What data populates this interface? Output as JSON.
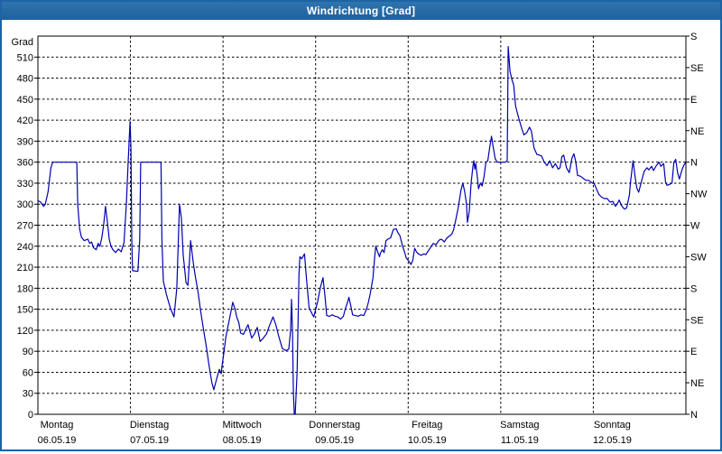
{
  "window": {
    "title": "Windrichtung [Grad]"
  },
  "chart_data": {
    "type": "line",
    "title": "Windrichtung [Grad]",
    "line_color": "#0000b0",
    "grid": "dashed",
    "ylim": [
      0,
      540
    ],
    "x_range_days": 7,
    "y_axis_left": {
      "title": "Grad",
      "tick_step": 30,
      "ticks": [
        0,
        30,
        60,
        90,
        120,
        150,
        180,
        210,
        240,
        270,
        300,
        330,
        360,
        390,
        420,
        450,
        480,
        510
      ]
    },
    "y_axis_right": {
      "tick_step": 45,
      "ticks": [
        {
          "value": 540,
          "label": "S"
        },
        {
          "value": 495,
          "label": "SE"
        },
        {
          "value": 450,
          "label": "E"
        },
        {
          "value": 405,
          "label": "NE"
        },
        {
          "value": 360,
          "label": "N"
        },
        {
          "value": 315,
          "label": "NW"
        },
        {
          "value": 270,
          "label": "W"
        },
        {
          "value": 225,
          "label": "SW"
        },
        {
          "value": 180,
          "label": "S"
        },
        {
          "value": 135,
          "label": "SE"
        },
        {
          "value": 90,
          "label": "E"
        },
        {
          "value": 45,
          "label": "NE"
        },
        {
          "value": 0,
          "label": "N"
        }
      ]
    },
    "x_axis": {
      "days": [
        {
          "name": "Montag",
          "date": "06.05.19"
        },
        {
          "name": "Dienstag",
          "date": "07.05.19"
        },
        {
          "name": "Mittwoch",
          "date": "08.05.19"
        },
        {
          "name": "Donnerstag",
          "date": "09.05.19"
        },
        {
          "name": "Freitag",
          "date": "10.05.19"
        },
        {
          "name": "Samstag",
          "date": "11.05.19"
        },
        {
          "name": "Sonntag",
          "date": "12.05.19"
        }
      ]
    },
    "series": [
      {
        "name": "Windrichtung",
        "points": [
          [
            0.0,
            305
          ],
          [
            0.03,
            303
          ],
          [
            0.06,
            297
          ],
          [
            0.08,
            300
          ],
          [
            0.11,
            318
          ],
          [
            0.14,
            352
          ],
          [
            0.16,
            360
          ],
          [
            0.42,
            360
          ],
          [
            0.43,
            300
          ],
          [
            0.45,
            265
          ],
          [
            0.47,
            253
          ],
          [
            0.5,
            248
          ],
          [
            0.54,
            250
          ],
          [
            0.56,
            244
          ],
          [
            0.58,
            246
          ],
          [
            0.6,
            238
          ],
          [
            0.63,
            235
          ],
          [
            0.65,
            244
          ],
          [
            0.67,
            240
          ],
          [
            0.69,
            252
          ],
          [
            0.71,
            270
          ],
          [
            0.73,
            297
          ],
          [
            0.75,
            276
          ],
          [
            0.77,
            250
          ],
          [
            0.79,
            240
          ],
          [
            0.81,
            235
          ],
          [
            0.84,
            231
          ],
          [
            0.87,
            236
          ],
          [
            0.9,
            232
          ],
          [
            0.93,
            245
          ],
          [
            0.955,
            300
          ],
          [
            0.975,
            360
          ],
          [
            0.995,
            418
          ],
          [
            1.005,
            380
          ],
          [
            1.014,
            250
          ],
          [
            1.023,
            205
          ],
          [
            1.08,
            204
          ],
          [
            1.1,
            250
          ],
          [
            1.11,
            360
          ],
          [
            1.33,
            360
          ],
          [
            1.34,
            250
          ],
          [
            1.355,
            190
          ],
          [
            1.39,
            170
          ],
          [
            1.43,
            152
          ],
          [
            1.47,
            139
          ],
          [
            1.5,
            180
          ],
          [
            1.52,
            260
          ],
          [
            1.53,
            300
          ],
          [
            1.55,
            280
          ],
          [
            1.57,
            227
          ],
          [
            1.58,
            214
          ],
          [
            1.6,
            188
          ],
          [
            1.62,
            184
          ],
          [
            1.64,
            225
          ],
          [
            1.65,
            248
          ],
          [
            1.68,
            215
          ],
          [
            1.7,
            197
          ],
          [
            1.73,
            175
          ],
          [
            1.755,
            150
          ],
          [
            1.79,
            120
          ],
          [
            1.82,
            96
          ],
          [
            1.85,
            68
          ],
          [
            1.88,
            45
          ],
          [
            1.9,
            35
          ],
          [
            1.92,
            45
          ],
          [
            1.94,
            55
          ],
          [
            1.96,
            64
          ],
          [
            1.98,
            58
          ],
          [
            1.99,
            70
          ],
          [
            2.01,
            89
          ],
          [
            2.03,
            110
          ],
          [
            2.06,
            130
          ],
          [
            2.09,
            150
          ],
          [
            2.105,
            160
          ],
          [
            2.13,
            150
          ],
          [
            2.15,
            138
          ],
          [
            2.17,
            131
          ],
          [
            2.19,
            116
          ],
          [
            2.22,
            114
          ],
          [
            2.24,
            120
          ],
          [
            2.27,
            128
          ],
          [
            2.29,
            118
          ],
          [
            2.31,
            109
          ],
          [
            2.34,
            115
          ],
          [
            2.37,
            124
          ],
          [
            2.4,
            104
          ],
          [
            2.43,
            108
          ],
          [
            2.47,
            115
          ],
          [
            2.5,
            126
          ],
          [
            2.54,
            139
          ],
          [
            2.57,
            128
          ],
          [
            2.6,
            112
          ],
          [
            2.64,
            94
          ],
          [
            2.68,
            91
          ],
          [
            2.71,
            93
          ],
          [
            2.73,
            120
          ],
          [
            2.74,
            164
          ],
          [
            2.75,
            120
          ],
          [
            2.76,
            30
          ],
          [
            2.77,
            0
          ],
          [
            2.78,
            0
          ],
          [
            2.8,
            60
          ],
          [
            2.82,
            200
          ],
          [
            2.83,
            225
          ],
          [
            2.85,
            222
          ],
          [
            2.88,
            229
          ],
          [
            2.9,
            195
          ],
          [
            2.93,
            152
          ],
          [
            2.96,
            144
          ],
          [
            2.98,
            139
          ],
          [
            3.02,
            160
          ],
          [
            3.05,
            180
          ],
          [
            3.08,
            195
          ],
          [
            3.1,
            170
          ],
          [
            3.12,
            141
          ],
          [
            3.15,
            140
          ],
          [
            3.18,
            142
          ],
          [
            3.21,
            140
          ],
          [
            3.24,
            139
          ],
          [
            3.27,
            136
          ],
          [
            3.3,
            140
          ],
          [
            3.32,
            150
          ],
          [
            3.35,
            162
          ],
          [
            3.36,
            167
          ],
          [
            3.38,
            155
          ],
          [
            3.4,
            142
          ],
          [
            3.43,
            141
          ],
          [
            3.46,
            140
          ],
          [
            3.49,
            142
          ],
          [
            3.52,
            141
          ],
          [
            3.55,
            150
          ],
          [
            3.57,
            160
          ],
          [
            3.59,
            172
          ],
          [
            3.62,
            195
          ],
          [
            3.64,
            228
          ],
          [
            3.65,
            240
          ],
          [
            3.67,
            232
          ],
          [
            3.69,
            225
          ],
          [
            3.7,
            230
          ],
          [
            3.72,
            235
          ],
          [
            3.74,
            231
          ],
          [
            3.76,
            248
          ],
          [
            3.78,
            250
          ],
          [
            3.81,
            252
          ],
          [
            3.84,
            264
          ],
          [
            3.87,
            265
          ],
          [
            3.89,
            259
          ],
          [
            3.91,
            255
          ],
          [
            3.94,
            240
          ],
          [
            3.96,
            232
          ],
          [
            3.98,
            223
          ],
          [
            4.01,
            218
          ],
          [
            4.03,
            214
          ],
          [
            4.05,
            220
          ],
          [
            4.07,
            237
          ],
          [
            4.09,
            232
          ],
          [
            4.11,
            229
          ],
          [
            4.14,
            227
          ],
          [
            4.17,
            229
          ],
          [
            4.19,
            228
          ],
          [
            4.22,
            234
          ],
          [
            4.25,
            240
          ],
          [
            4.27,
            244
          ],
          [
            4.3,
            242
          ],
          [
            4.33,
            248
          ],
          [
            4.35,
            250
          ],
          [
            4.37,
            249
          ],
          [
            4.39,
            246
          ],
          [
            4.42,
            252
          ],
          [
            4.44,
            254
          ],
          [
            4.47,
            257
          ],
          [
            4.49,
            263
          ],
          [
            4.51,
            275
          ],
          [
            4.54,
            295
          ],
          [
            4.57,
            320
          ],
          [
            4.59,
            330
          ],
          [
            4.61,
            318
          ],
          [
            4.63,
            300
          ],
          [
            4.64,
            274
          ],
          [
            4.66,
            290
          ],
          [
            4.68,
            330
          ],
          [
            4.7,
            355
          ],
          [
            4.71,
            362
          ],
          [
            4.72,
            350
          ],
          [
            4.73,
            358
          ],
          [
            4.75,
            335
          ],
          [
            4.76,
            322
          ],
          [
            4.78,
            330
          ],
          [
            4.8,
            326
          ],
          [
            4.82,
            340
          ],
          [
            4.84,
            360
          ],
          [
            4.86,
            362
          ],
          [
            4.88,
            380
          ],
          [
            4.9,
            397
          ],
          [
            4.92,
            380
          ],
          [
            4.94,
            365
          ],
          [
            4.96,
            360
          ],
          [
            4.99,
            360
          ],
          [
            5.05,
            360
          ],
          [
            5.07,
            362
          ],
          [
            5.08,
            525
          ],
          [
            5.1,
            490
          ],
          [
            5.12,
            478
          ],
          [
            5.14,
            470
          ],
          [
            5.16,
            440
          ],
          [
            5.18,
            430
          ],
          [
            5.2,
            420
          ],
          [
            5.23,
            407
          ],
          [
            5.25,
            399
          ],
          [
            5.28,
            402
          ],
          [
            5.31,
            410
          ],
          [
            5.33,
            405
          ],
          [
            5.36,
            380
          ],
          [
            5.39,
            371
          ],
          [
            5.42,
            370
          ],
          [
            5.44,
            369
          ],
          [
            5.47,
            360
          ],
          [
            5.5,
            355
          ],
          [
            5.53,
            362
          ],
          [
            5.56,
            352
          ],
          [
            5.59,
            358
          ],
          [
            5.62,
            350
          ],
          [
            5.64,
            352
          ],
          [
            5.66,
            368
          ],
          [
            5.68,
            370
          ],
          [
            5.71,
            352
          ],
          [
            5.74,
            345
          ],
          [
            5.77,
            366
          ],
          [
            5.79,
            372
          ],
          [
            5.81,
            361
          ],
          [
            5.83,
            341
          ],
          [
            5.86,
            340
          ],
          [
            5.89,
            337
          ],
          [
            5.92,
            334
          ],
          [
            5.95,
            334
          ],
          [
            5.98,
            331
          ],
          [
            6.01,
            329
          ],
          [
            6.04,
            320
          ],
          [
            6.06,
            314
          ],
          [
            6.09,
            310
          ],
          [
            6.12,
            308
          ],
          [
            6.15,
            308
          ],
          [
            6.18,
            303
          ],
          [
            6.21,
            304
          ],
          [
            6.24,
            297
          ],
          [
            6.26,
            301
          ],
          [
            6.28,
            306
          ],
          [
            6.3,
            299
          ],
          [
            6.32,
            295
          ],
          [
            6.34,
            293
          ],
          [
            6.36,
            295
          ],
          [
            6.39,
            313
          ],
          [
            6.4,
            330
          ],
          [
            6.42,
            352
          ],
          [
            6.43,
            362
          ],
          [
            6.45,
            340
          ],
          [
            6.47,
            323
          ],
          [
            6.49,
            317
          ],
          [
            6.52,
            333
          ],
          [
            6.55,
            347
          ],
          [
            6.58,
            352
          ],
          [
            6.6,
            349
          ],
          [
            6.63,
            354
          ],
          [
            6.65,
            348
          ],
          [
            6.68,
            355
          ],
          [
            6.71,
            360
          ],
          [
            6.73,
            354
          ],
          [
            6.76,
            358
          ],
          [
            6.78,
            332
          ],
          [
            6.795,
            327
          ],
          [
            6.82,
            328
          ],
          [
            6.85,
            330
          ],
          [
            6.87,
            360
          ],
          [
            6.89,
            364
          ],
          [
            6.91,
            345
          ],
          [
            6.93,
            336
          ],
          [
            6.96,
            350
          ],
          [
            6.98,
            356
          ],
          [
            7.0,
            360
          ]
        ]
      }
    ]
  }
}
